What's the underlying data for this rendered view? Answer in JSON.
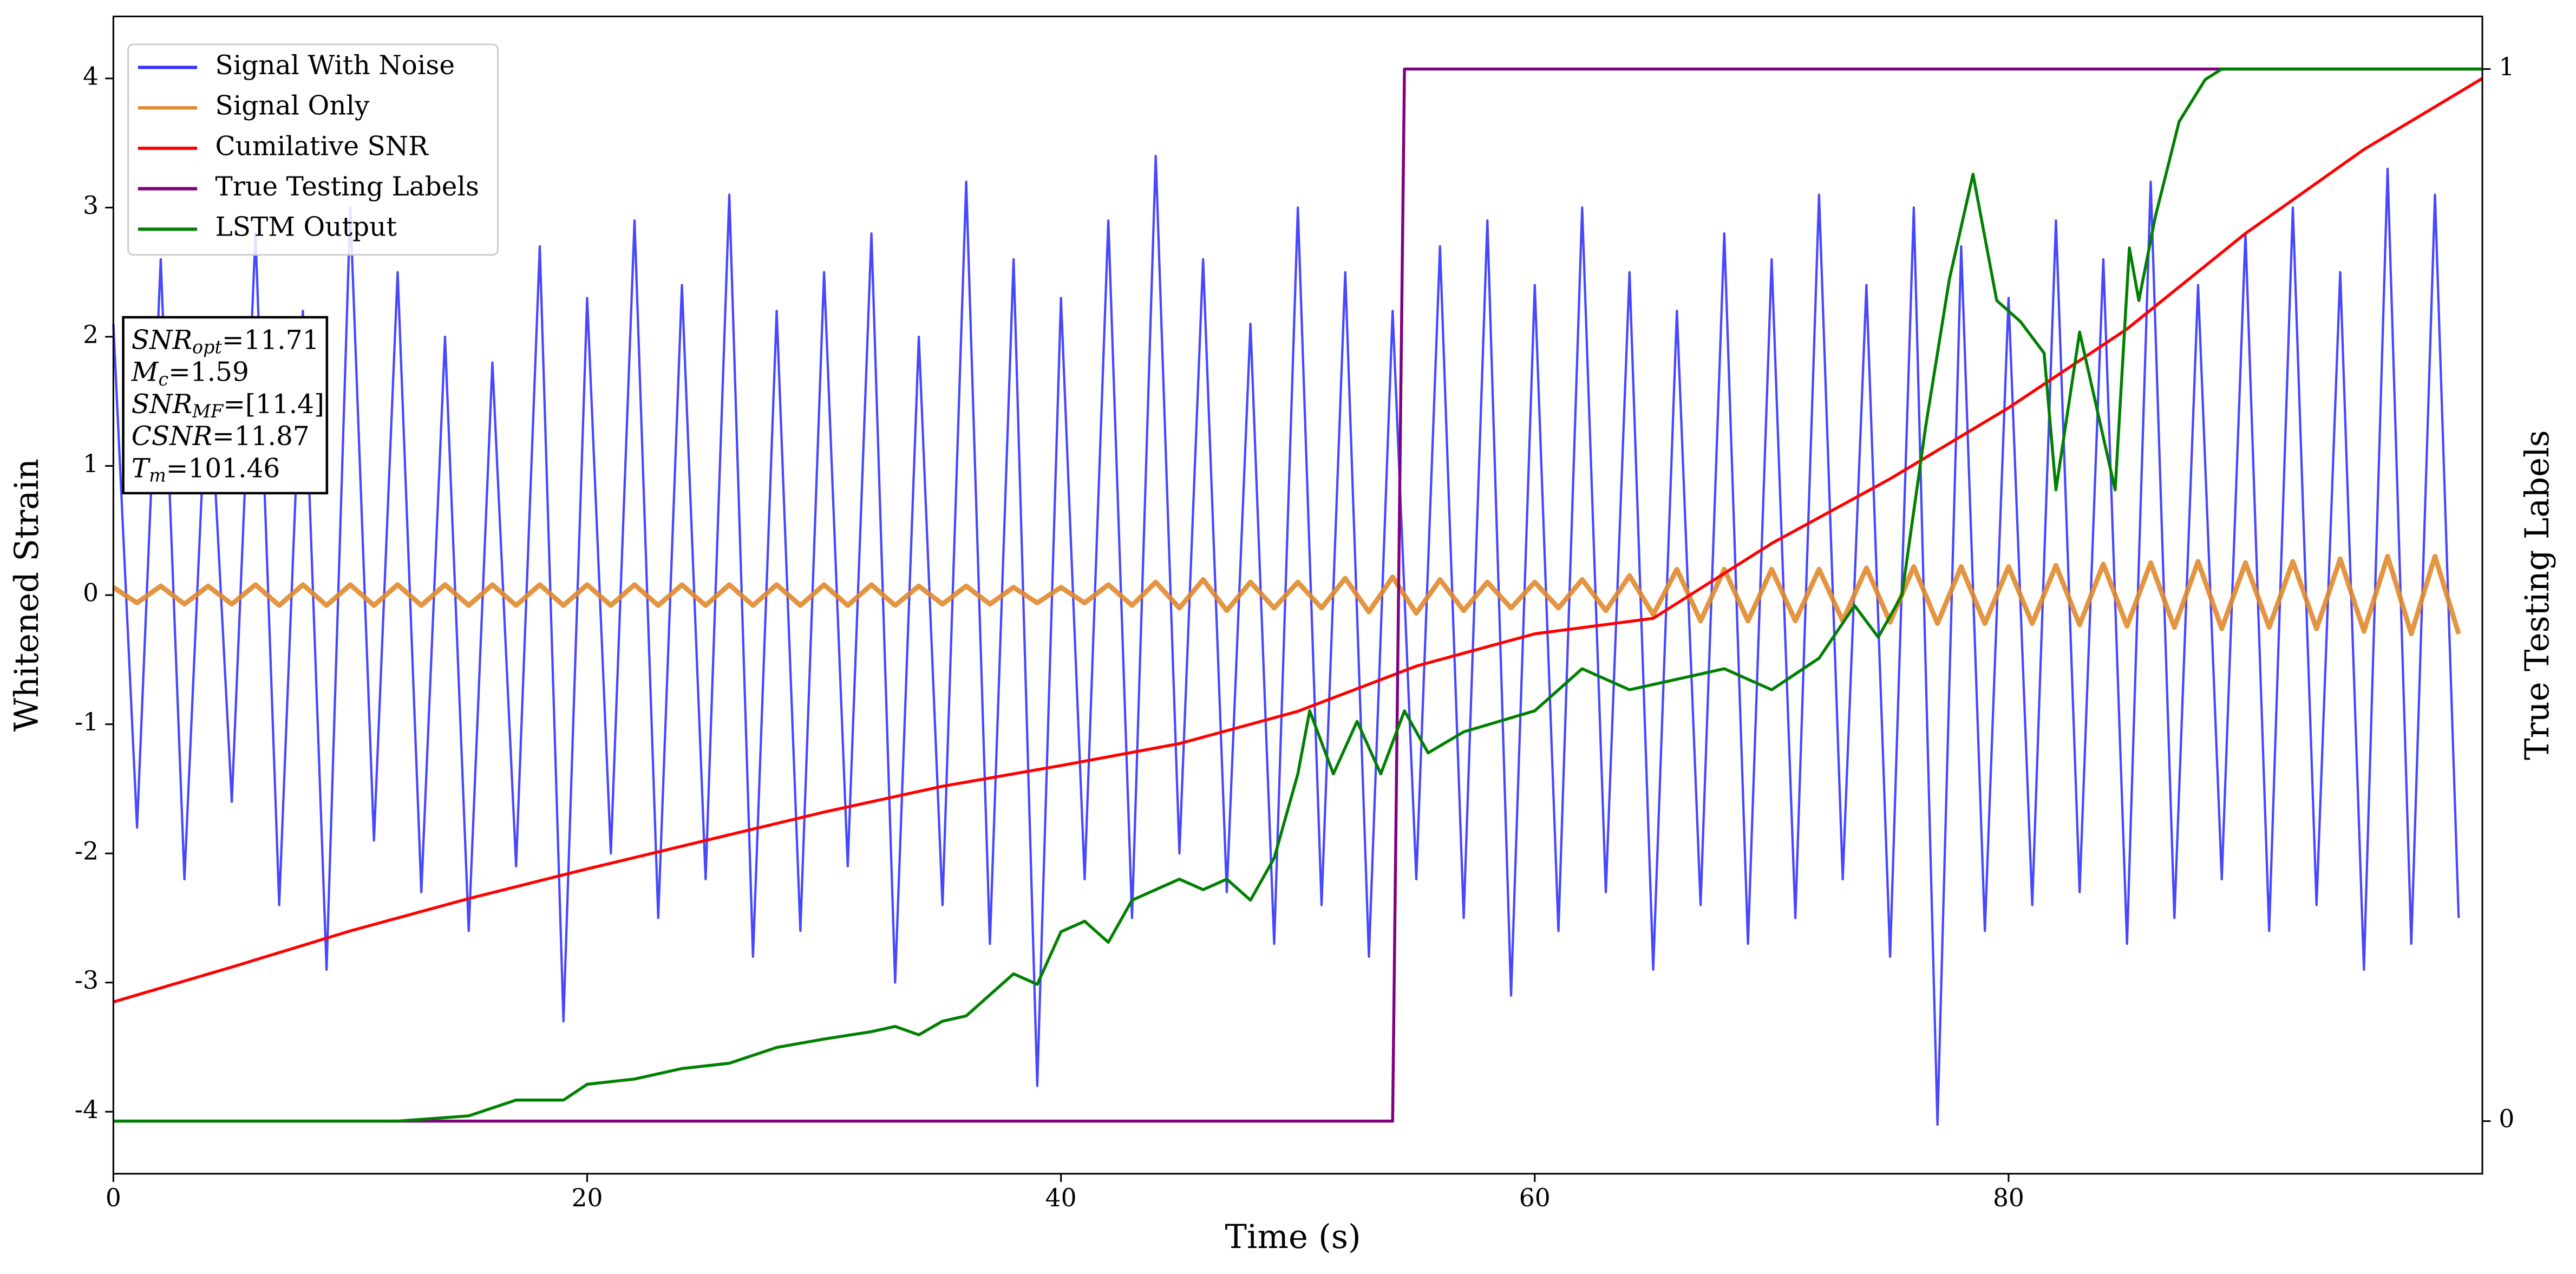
{
  "chart_data": {
    "type": "line",
    "xlabel": "Time (s)",
    "ylabel": "Whitened Strain",
    "y2label": "True Testing Labels",
    "xlim": [
      0,
      100
    ],
    "xticks": [
      0,
      20,
      40,
      60,
      80
    ],
    "ylim": [
      -4.48,
      4.48
    ],
    "yticks": [
      -4,
      -3,
      -2,
      -1,
      0,
      1,
      2,
      3,
      4
    ],
    "y2lim": [
      -0.05,
      1.05
    ],
    "y2ticks": [
      0,
      1
    ],
    "legend": "upper left",
    "annotation": [
      {
        "text": "SNR",
        "sub": "opt",
        "value": "=11.71"
      },
      {
        "text": "M",
        "sub": "c",
        "value": "=1.59"
      },
      {
        "text": "SNR",
        "sub": "MF",
        "value": "=[11.4]"
      },
      {
        "text": "CSNR",
        "value": "=11.87"
      },
      {
        "text": "T",
        "sub": "m",
        "value": "=101.46"
      }
    ],
    "series": [
      {
        "name": "Signal With Noise",
        "color": "#3333ff",
        "x": [
          0,
          1,
          2,
          3,
          4,
          5,
          6,
          7,
          8,
          9,
          10,
          11,
          12,
          13,
          14,
          15,
          16,
          17,
          18,
          19,
          20,
          21,
          22,
          23,
          24,
          25,
          26,
          27,
          28,
          29,
          30,
          31,
          32,
          33,
          34,
          35,
          36,
          37,
          38,
          39,
          40,
          41,
          42,
          43,
          44,
          45,
          46,
          47,
          48,
          49,
          50,
          51,
          52,
          53,
          54,
          55,
          56,
          57,
          58,
          59,
          60,
          61,
          62,
          63,
          64,
          65,
          66,
          67,
          68,
          69,
          70,
          71,
          72,
          73,
          74,
          75,
          76,
          77,
          78,
          79,
          80,
          81,
          82,
          83,
          84,
          85,
          86,
          87,
          88,
          89,
          90,
          91,
          92,
          93,
          94,
          95,
          96,
          97,
          98,
          99
        ],
        "values": [
          2.1,
          -1.8,
          2.6,
          -2.2,
          1.9,
          -1.6,
          2.8,
          -2.4,
          2.2,
          -2.9,
          3.0,
          -1.9,
          2.5,
          -2.3,
          2.0,
          -2.6,
          1.8,
          -2.1,
          2.7,
          -3.3,
          2.3,
          -2.0,
          2.9,
          -2.5,
          2.4,
          -2.2,
          3.1,
          -2.8,
          2.2,
          -2.6,
          2.5,
          -2.1,
          2.8,
          -3.0,
          2.0,
          -2.4,
          3.2,
          -2.7,
          2.6,
          -3.8,
          2.3,
          -2.2,
          2.9,
          -2.5,
          3.4,
          -2.0,
          2.6,
          -2.3,
          2.1,
          -2.7,
          3.0,
          -2.4,
          2.5,
          -2.8,
          2.2,
          -2.2,
          2.7,
          -2.5,
          2.9,
          -3.1,
          2.4,
          -2.6,
          3.0,
          -2.3,
          2.5,
          -2.9,
          2.2,
          -2.4,
          2.8,
          -2.7,
          2.6,
          -2.5,
          3.1,
          -2.2,
          2.4,
          -2.8,
          3.0,
          -4.1,
          2.7,
          -2.6,
          2.3,
          -2.4,
          2.9,
          -2.3,
          2.6,
          -2.7,
          3.2,
          -2.5,
          2.4,
          -2.2,
          2.8,
          -2.6,
          3.0,
          -2.4,
          2.5,
          -2.9,
          3.3,
          -2.7,
          3.1,
          -2.5
        ]
      },
      {
        "name": "Signal Only",
        "color": "#e08a2c",
        "x": [
          0,
          1,
          2,
          3,
          4,
          5,
          6,
          7,
          8,
          9,
          10,
          11,
          12,
          13,
          14,
          15,
          16,
          17,
          18,
          19,
          20,
          21,
          22,
          23,
          24,
          25,
          26,
          27,
          28,
          29,
          30,
          31,
          32,
          33,
          34,
          35,
          36,
          37,
          38,
          39,
          40,
          41,
          42,
          43,
          44,
          45,
          46,
          47,
          48,
          49,
          50,
          51,
          52,
          53,
          54,
          55,
          56,
          57,
          58,
          59,
          60,
          61,
          62,
          63,
          64,
          65,
          66,
          67,
          68,
          69,
          70,
          71,
          72,
          73,
          74,
          75,
          76,
          77,
          78,
          79,
          80,
          81,
          82,
          83,
          84,
          85,
          86,
          87,
          88,
          89,
          90,
          91,
          92,
          93,
          94,
          95,
          96,
          97,
          98,
          99
        ],
        "values": [
          0.06,
          -0.06,
          0.07,
          -0.07,
          0.07,
          -0.07,
          0.08,
          -0.08,
          0.08,
          -0.08,
          0.08,
          -0.08,
          0.08,
          -0.08,
          0.08,
          -0.08,
          0.08,
          -0.08,
          0.08,
          -0.08,
          0.08,
          -0.08,
          0.08,
          -0.08,
          0.08,
          -0.08,
          0.08,
          -0.08,
          0.08,
          -0.08,
          0.08,
          -0.08,
          0.08,
          -0.08,
          0.07,
          -0.07,
          0.07,
          -0.07,
          0.06,
          -0.06,
          0.06,
          -0.06,
          0.08,
          -0.08,
          0.1,
          -0.1,
          0.12,
          -0.12,
          0.1,
          -0.1,
          0.1,
          -0.1,
          0.13,
          -0.13,
          0.14,
          -0.14,
          0.12,
          -0.12,
          0.1,
          -0.1,
          0.1,
          -0.1,
          0.12,
          -0.12,
          0.15,
          -0.15,
          0.2,
          -0.2,
          0.2,
          -0.2,
          0.2,
          -0.2,
          0.2,
          -0.2,
          0.21,
          -0.21,
          0.22,
          -0.22,
          0.22,
          -0.22,
          0.22,
          -0.22,
          0.23,
          -0.23,
          0.24,
          -0.24,
          0.25,
          -0.25,
          0.26,
          -0.26,
          0.25,
          -0.25,
          0.26,
          -0.26,
          0.28,
          -0.28,
          0.3,
          -0.3,
          0.3,
          -0.3
        ]
      },
      {
        "name": "Cumilative SNR",
        "color": "#ff0000",
        "x": [
          0,
          5,
          10,
          15,
          20,
          25,
          30,
          35,
          40,
          45,
          50,
          55,
          60,
          65,
          70,
          75,
          80,
          85,
          90,
          95,
          100
        ],
        "values": [
          -3.15,
          -2.88,
          -2.6,
          -2.35,
          -2.12,
          -1.9,
          -1.68,
          -1.48,
          -1.32,
          -1.15,
          -0.9,
          -0.55,
          -0.3,
          -0.18,
          0.4,
          0.9,
          1.45,
          2.06,
          2.8,
          3.45,
          4.0
        ]
      },
      {
        "name": "True Testing Labels",
        "color": "#800080",
        "axis": "y2",
        "x": [
          0,
          54,
          54.5,
          100
        ],
        "values": [
          0,
          0,
          1,
          1
        ]
      },
      {
        "name": "LSTM Output",
        "color": "#008000",
        "axis": "y2",
        "x": [
          0,
          12,
          15,
          17,
          19,
          20,
          22,
          24,
          26,
          28,
          30,
          32,
          33,
          34,
          35,
          36,
          38,
          39,
          40,
          41,
          42,
          43,
          44,
          45,
          46,
          47,
          48,
          49,
          50,
          50.5,
          51.5,
          52.5,
          53.5,
          54.5,
          55.5,
          57,
          60,
          62,
          64,
          66,
          68,
          70,
          72,
          73.5,
          74.5,
          75.5,
          76.5,
          77.5,
          78.5,
          79.5,
          80.5,
          81.5,
          82,
          83,
          84.5,
          85.1,
          85.5,
          86.2,
          87.2,
          88.3,
          89,
          100
        ],
        "values": [
          0,
          0,
          0.005,
          0.02,
          0.02,
          0.035,
          0.04,
          0.05,
          0.055,
          0.07,
          0.078,
          0.085,
          0.09,
          0.082,
          0.095,
          0.1,
          0.14,
          0.13,
          0.18,
          0.19,
          0.17,
          0.21,
          0.22,
          0.23,
          0.22,
          0.23,
          0.21,
          0.25,
          0.33,
          0.39,
          0.33,
          0.38,
          0.33,
          0.39,
          0.35,
          0.37,
          0.39,
          0.43,
          0.41,
          0.42,
          0.43,
          0.41,
          0.44,
          0.49,
          0.46,
          0.5,
          0.66,
          0.8,
          0.9,
          0.78,
          0.76,
          0.73,
          0.6,
          0.75,
          0.6,
          0.83,
          0.78,
          0.86,
          0.95,
          0.99,
          1.0,
          1.0
        ]
      }
    ]
  }
}
